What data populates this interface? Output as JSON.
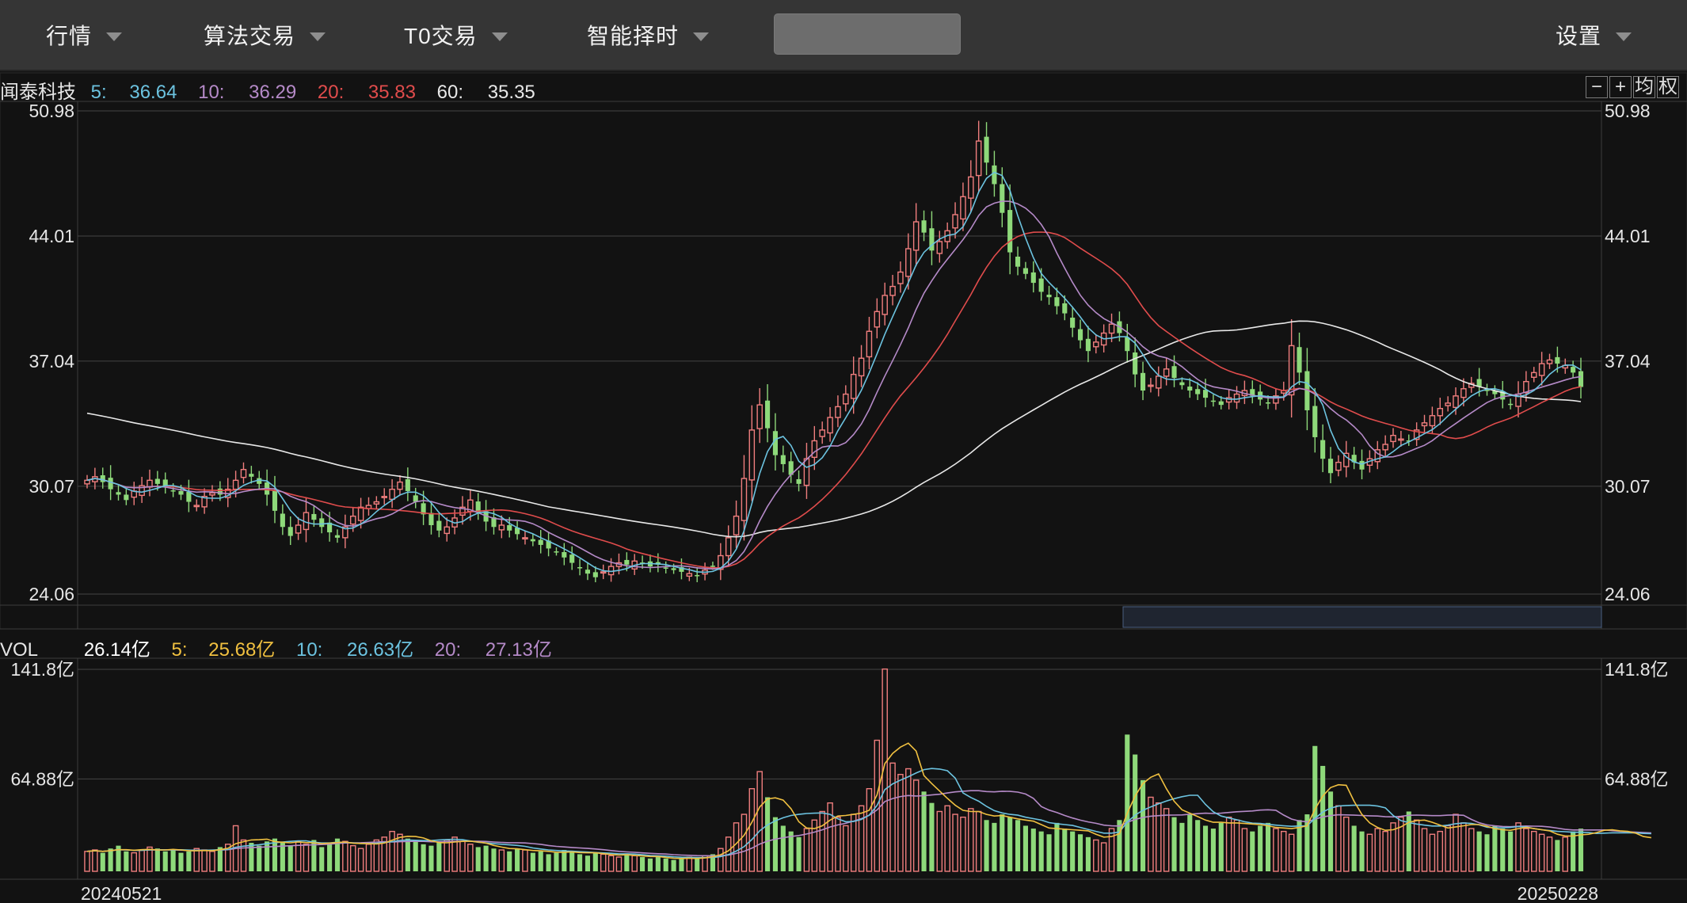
{
  "toolbar": {
    "menus": [
      {
        "label": "行情"
      },
      {
        "label": "算法交易"
      },
      {
        "label": "T0交易"
      },
      {
        "label": "智能择时"
      }
    ],
    "search": {
      "value": "",
      "placeholder": ""
    },
    "settings": {
      "label": "设置"
    }
  },
  "price_panel": {
    "stock_name": "闻泰科技",
    "ma": [
      {
        "label": "5:",
        "value": "36.64",
        "color": "#6cc3e0"
      },
      {
        "label": "10:",
        "value": "36.29",
        "color": "#b58ac8"
      },
      {
        "label": "20:",
        "value": "35.83",
        "color": "#e04c4c"
      },
      {
        "label": "60:",
        "value": "35.35",
        "color": "#e8e8e8"
      }
    ],
    "zoom_controls": [
      "−",
      "+",
      "均",
      "权"
    ]
  },
  "volume_panel": {
    "label": "VOL",
    "current": "26.14亿",
    "ma": [
      {
        "label": "5:",
        "value": "25.68亿",
        "color": "#f0c040"
      },
      {
        "label": "10:",
        "value": "26.63亿",
        "color": "#6cc3e0"
      },
      {
        "label": "20:",
        "value": "27.13亿",
        "color": "#b58ac8"
      }
    ]
  },
  "colors": {
    "up": "#f07e7e",
    "down": "#8ed97a",
    "ma5": "#6cc3e0",
    "ma10": "#b58ac8",
    "ma20": "#e04c4c",
    "ma60": "#e8e8e8",
    "vol_ma5": "#f0c040"
  },
  "chart_data": [
    {
      "type": "candlestick",
      "y_ticks": [
        "50.98",
        "44.01",
        "37.04",
        "30.07",
        "24.06"
      ],
      "ylim": [
        24.06,
        50.98
      ],
      "x_start": "20240521",
      "x_end": "20250228",
      "closes": [
        30.4,
        30.6,
        30.3,
        29.9,
        29.6,
        29.3,
        29.8,
        30.1,
        30.4,
        30.2,
        30.0,
        29.8,
        29.6,
        29.2,
        29.0,
        29.5,
        29.7,
        29.6,
        29.9,
        30.4,
        31.0,
        30.6,
        30.2,
        29.6,
        28.7,
        27.8,
        27.3,
        27.9,
        28.6,
        28.2,
        27.8,
        27.5,
        27.2,
        27.8,
        28.4,
        28.9,
        29.0,
        29.2,
        29.5,
        29.9,
        30.3,
        29.8,
        29.2,
        28.5,
        27.9,
        27.6,
        27.8,
        28.3,
        28.9,
        29.3,
        28.6,
        28.1,
        27.8,
        27.9,
        27.6,
        27.4,
        27.2,
        27.0,
        26.8,
        26.6,
        26.4,
        26.1,
        25.8,
        25.5,
        25.2,
        25.0,
        25.3,
        25.6,
        25.8,
        25.7,
        25.9,
        25.8,
        25.6,
        25.7,
        25.5,
        25.4,
        25.3,
        25.2,
        25.1,
        25.4,
        25.6,
        26.2,
        27.2,
        28.4,
        30.5,
        33.2,
        34.6,
        33.3,
        31.8,
        31.3,
        30.7,
        30.2,
        31.6,
        32.6,
        33.2,
        33.9,
        34.5,
        35.2,
        36.3,
        37.2,
        38.7,
        39.8,
        40.7,
        41.2,
        42.0,
        43.3,
        44.8,
        44.2,
        43.2,
        43.7,
        44.3,
        45.2,
        46.2,
        47.3,
        49.3,
        48.1,
        46.9,
        45.3,
        43.1,
        42.3,
        41.9,
        41.4,
        40.9,
        40.6,
        40.1,
        39.7,
        38.9,
        38.2,
        37.6,
        38.1,
        38.6,
        39.1,
        38.6,
        37.6,
        36.3,
        35.4,
        35.7,
        36.2,
        36.6,
        36.1,
        35.7,
        35.4,
        35.2,
        35.0,
        34.8,
        34.6,
        35.0,
        35.2,
        35.4,
        35.1,
        34.9,
        34.7,
        35.1,
        35.4,
        37.9,
        36.4,
        34.3,
        32.8,
        31.6,
        30.8,
        31.4,
        31.9,
        31.4,
        31.0,
        31.6,
        32.1,
        32.4,
        32.9,
        32.7,
        32.6,
        33.2,
        33.6,
        34.0,
        34.4,
        34.7,
        35.1,
        35.5,
        35.8,
        35.6,
        35.4,
        35.2,
        34.9,
        34.6,
        35.2,
        35.9,
        36.4,
        36.9,
        37.1,
        36.9,
        36.8,
        36.4,
        35.6
      ],
      "series": [
        {
          "name": "5:",
          "ref": "ma5"
        },
        {
          "name": "10:",
          "ref": "ma10"
        },
        {
          "name": "20:",
          "ref": "ma20"
        },
        {
          "name": "60:",
          "ref": "ma60"
        }
      ]
    },
    {
      "type": "bar",
      "y_ticks": [
        "141.8亿",
        "64.88亿"
      ],
      "ylim": [
        0,
        141.8
      ],
      "volumes": [
        14,
        15,
        13,
        16,
        18,
        14,
        13,
        15,
        17,
        16,
        14,
        15,
        13,
        14,
        16,
        15,
        14,
        17,
        19,
        32,
        22,
        20,
        18,
        21,
        23,
        20,
        18,
        21,
        19,
        22,
        17,
        20,
        23,
        21,
        18,
        16,
        19,
        22,
        24,
        28,
        26,
        23,
        21,
        19,
        18,
        20,
        22,
        24,
        21,
        19,
        17,
        18,
        16,
        15,
        14,
        16,
        15,
        13,
        14,
        12,
        13,
        15,
        14,
        12,
        11,
        13,
        12,
        11,
        10,
        12,
        11,
        10,
        9,
        10,
        9,
        8,
        9,
        10,
        9,
        11,
        12,
        16,
        24,
        34,
        40,
        58,
        70,
        52,
        38,
        32,
        28,
        24,
        30,
        36,
        42,
        48,
        38,
        32,
        40,
        46,
        58,
        92,
        142,
        76,
        68,
        72,
        64,
        56,
        48,
        42,
        46,
        40,
        38,
        44,
        42,
        36,
        34,
        40,
        38,
        36,
        32,
        30,
        28,
        26,
        34,
        30,
        28,
        26,
        24,
        22,
        20,
        30,
        36,
        96,
        82,
        64,
        52,
        48,
        44,
        38,
        34,
        40,
        36,
        32,
        30,
        34,
        38,
        36,
        30,
        28,
        32,
        34,
        30,
        28,
        26,
        36,
        40,
        88,
        74,
        56,
        46,
        38,
        32,
        28,
        26,
        30,
        28,
        34,
        38,
        42,
        36,
        30,
        26,
        28,
        32,
        40,
        34,
        30,
        28,
        26,
        32,
        30,
        28,
        34,
        30,
        28,
        26,
        24,
        22,
        24,
        28,
        30,
        26,
        28,
        32,
        30,
        26,
        24,
        22,
        20,
        26
      ],
      "series": [
        {
          "name": "5:",
          "ref": "vol_ma5"
        },
        {
          "name": "10:",
          "ref": "ma5"
        },
        {
          "name": "20:",
          "ref": "ma10"
        }
      ]
    }
  ]
}
